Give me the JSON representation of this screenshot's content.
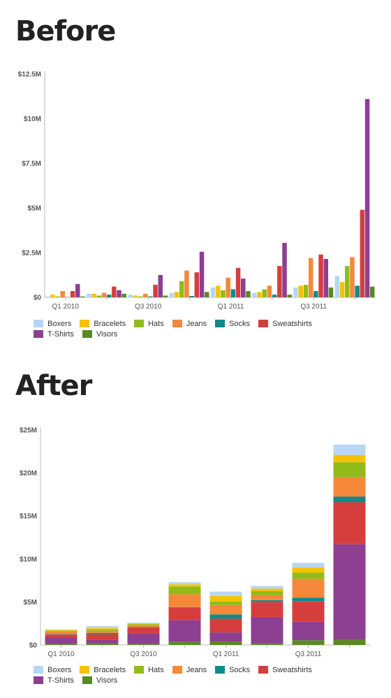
{
  "colors": {
    "Boxers": "#b5d7f5",
    "Bracelets": "#f5c200",
    "Hats": "#8fbc1b",
    "Jeans": "#f5883a",
    "Socks": "#0e8b8b",
    "Sweatshirts": "#d63e3e",
    "T-Shirts": "#8d3f91",
    "Visors": "#5a8a22"
  },
  "chart_data": [
    {
      "type": "bar",
      "title": "Before",
      "categories": [
        "Q1 2010",
        "Q2 2010",
        "Q3 2010",
        "Q4 2010",
        "Q1 2011",
        "Q2 2011",
        "Q3 2011",
        "Q4 2011"
      ],
      "x_tick_labels": [
        "Q1 2010",
        "Q3 2010",
        "Q1 2011",
        "Q3 2011"
      ],
      "y_tick_labels": [
        "$0",
        "$2.5M",
        "$5M",
        "$7.5M",
        "$10M",
        "$12.5M"
      ],
      "ylim": [
        0,
        12.5
      ],
      "yticks": [
        0,
        2.5,
        5,
        7.5,
        10,
        12.5
      ],
      "unit": "$M",
      "series": [
        {
          "name": "Boxers",
          "values": [
            0.05,
            0.2,
            0.15,
            0.25,
            0.55,
            0.25,
            0.55,
            1.2
          ]
        },
        {
          "name": "Bracelets",
          "values": [
            0.15,
            0.2,
            0.1,
            0.3,
            0.65,
            0.3,
            0.65,
            0.85
          ]
        },
        {
          "name": "Hats",
          "values": [
            0.05,
            0.1,
            0.05,
            0.9,
            0.4,
            0.45,
            0.7,
            1.75
          ]
        },
        {
          "name": "Jeans",
          "values": [
            0.35,
            0.25,
            0.2,
            1.5,
            1.1,
            0.65,
            2.2,
            2.25
          ]
        },
        {
          "name": "Socks",
          "values": [
            0.02,
            0.15,
            0.05,
            0.08,
            0.45,
            0.15,
            0.35,
            0.65
          ]
        },
        {
          "name": "Sweatshirts",
          "values": [
            0.35,
            0.6,
            0.7,
            1.4,
            1.65,
            1.75,
            2.4,
            4.9
          ]
        },
        {
          "name": "T-Shirts",
          "values": [
            0.75,
            0.4,
            1.25,
            2.55,
            1.05,
            3.05,
            2.15,
            11.1
          ]
        },
        {
          "name": "Visors",
          "values": [
            0.05,
            0.2,
            0.1,
            0.3,
            0.35,
            0.15,
            0.55,
            0.6
          ]
        }
      ]
    },
    {
      "type": "bar",
      "title": "After",
      "stacked": true,
      "categories": [
        "Q1 2010",
        "Q2 2010",
        "Q3 2010",
        "Q4 2010",
        "Q1 2011",
        "Q2 2011",
        "Q3 2011",
        "Q4 2011"
      ],
      "x_tick_labels": [
        "Q1 2010",
        "Q3 2010",
        "Q1 2011",
        "Q3 2011"
      ],
      "y_tick_labels": [
        "$0",
        "$5M",
        "$10M",
        "$15M",
        "$20M",
        "$25M"
      ],
      "ylim": [
        0,
        25
      ],
      "yticks": [
        0,
        5,
        10,
        15,
        20,
        25
      ],
      "unit": "$M",
      "series": [
        {
          "name": "Visors",
          "values": [
            0.1,
            0.2,
            0.1,
            0.35,
            0.4,
            0.2,
            0.55,
            0.6
          ]
        },
        {
          "name": "T-Shirts",
          "values": [
            0.75,
            0.4,
            1.25,
            2.55,
            1.05,
            3.05,
            2.15,
            11.1
          ]
        },
        {
          "name": "Sweatshirts",
          "values": [
            0.35,
            0.65,
            0.7,
            1.45,
            1.6,
            1.75,
            2.4,
            4.9
          ]
        },
        {
          "name": "Socks",
          "values": [
            0.05,
            0.15,
            0.05,
            0.05,
            0.5,
            0.2,
            0.4,
            0.65
          ]
        },
        {
          "name": "Jeans",
          "values": [
            0.35,
            0.25,
            0.2,
            1.5,
            1.1,
            0.6,
            2.2,
            2.25
          ]
        },
        {
          "name": "Hats",
          "values": [
            0.05,
            0.15,
            0.1,
            0.9,
            0.4,
            0.45,
            0.7,
            1.75
          ]
        },
        {
          "name": "Bracelets",
          "values": [
            0.1,
            0.15,
            0.1,
            0.25,
            0.65,
            0.3,
            0.6,
            0.85
          ]
        },
        {
          "name": "Boxers",
          "values": [
            0.05,
            0.25,
            0.1,
            0.25,
            0.5,
            0.3,
            0.55,
            1.2
          ]
        }
      ]
    }
  ],
  "legend": [
    "Boxers",
    "Bracelets",
    "Hats",
    "Jeans",
    "Socks",
    "Sweatshirts",
    "T-Shirts",
    "Visors"
  ]
}
